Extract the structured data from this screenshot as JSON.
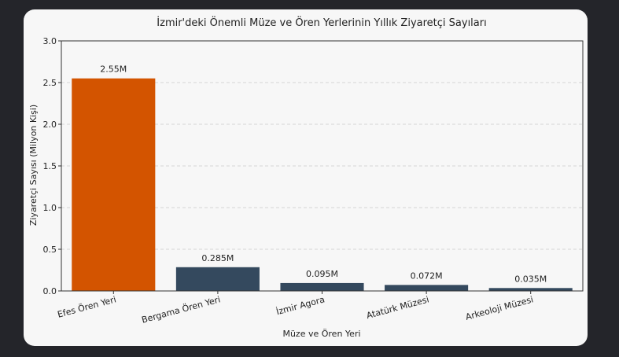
{
  "chart_data": {
    "type": "bar",
    "title": "İzmir'deki Önemli Müze ve Ören Yerlerinin Yıllık Ziyaretçi Sayıları",
    "xlabel": "Müze ve Ören Yeri",
    "ylabel": "Ziyaretçi Sayısı (Milyon Kişi)",
    "categories": [
      "Efes Ören Yeri",
      "Bergama Ören Yeri",
      "İzmir Agora",
      "Atatürk Müzesi",
      "Arkeoloji Müzesi"
    ],
    "values": [
      2.55,
      0.285,
      0.095,
      0.072,
      0.035
    ],
    "data_labels": [
      "2.55M",
      "0.285M",
      "0.095M",
      "0.072M",
      "0.035M"
    ],
    "ylim": [
      0,
      3.0
    ],
    "yticks": [
      0.0,
      0.5,
      1.0,
      1.5,
      2.0,
      2.5,
      3.0
    ],
    "ytick_labels": [
      "0.0",
      "0.5",
      "1.0",
      "1.5",
      "2.0",
      "2.5",
      "3.0"
    ],
    "grid": "horizontal dashed",
    "colors": {
      "highlight": "#d35400",
      "default": "#34495e"
    },
    "highlight_index": 0
  }
}
